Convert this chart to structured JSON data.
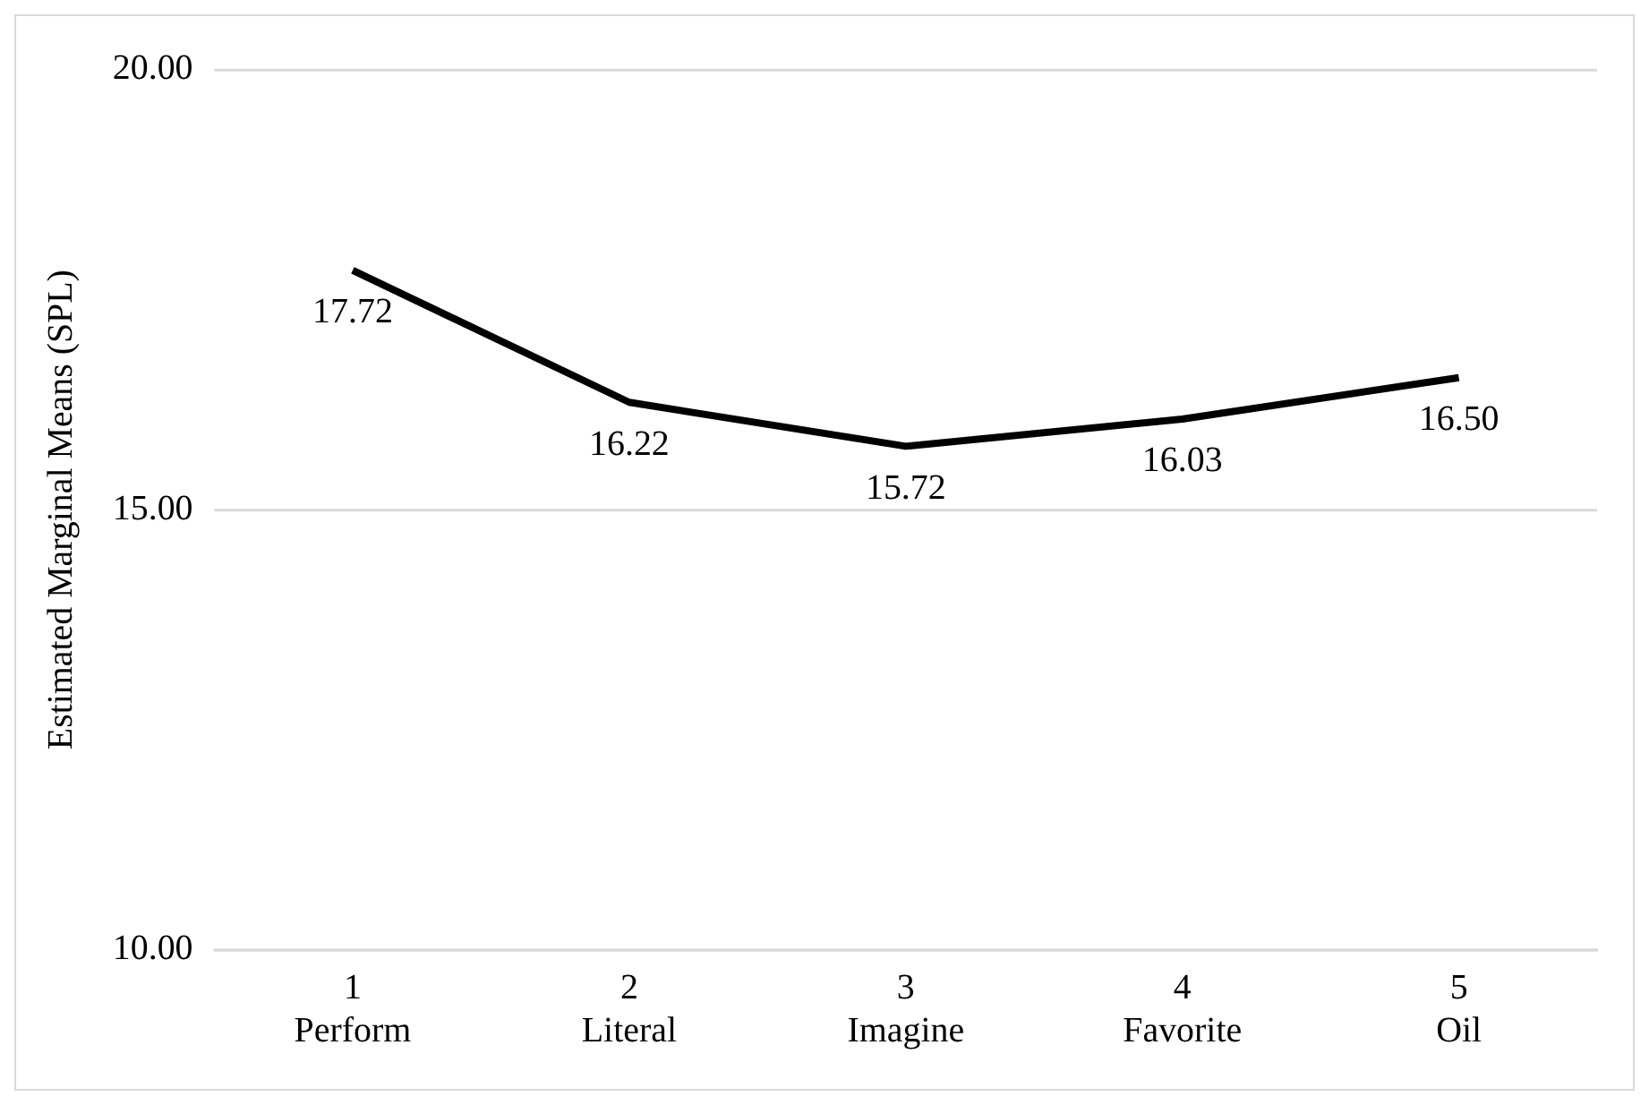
{
  "chart_data": {
    "type": "line",
    "ylabel": "Estimated Marginal Means (SPL)",
    "categories": [
      "1\nPerform",
      "2\nLiteral",
      "3\nImagine",
      "4\nFavorite",
      "5\nOil"
    ],
    "series": [
      {
        "color": "#000000",
        "values": [
          17.72,
          16.22,
          15.72,
          16.03,
          16.5
        ],
        "value_labels": [
          "17.72",
          "16.22",
          "15.72",
          "16.03",
          "16.50"
        ]
      }
    ],
    "ylim": [
      10,
      20
    ],
    "yticks": [
      {
        "value": 10,
        "label": "10.00"
      },
      {
        "value": 15,
        "label": "15.00"
      },
      {
        "value": 20,
        "label": "20.00"
      }
    ],
    "grid": "y",
    "legend": false,
    "marker": "none",
    "line_style": "solid"
  }
}
